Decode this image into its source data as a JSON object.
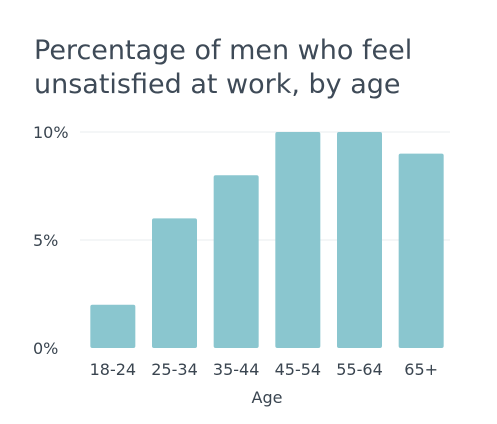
{
  "chart_data": {
    "type": "bar",
    "title_lines": [
      "Percentage of men who feel",
      "unsatisfied at work, by age"
    ],
    "categories": [
      "18-24",
      "25-34",
      "35-44",
      "45-54",
      "55-64",
      "65+"
    ],
    "values": [
      2,
      6,
      8,
      10,
      10,
      9
    ],
    "xlabel": "Age",
    "ylabel": "",
    "ylim": [
      0,
      10
    ],
    "yticks": [
      0,
      5,
      10
    ],
    "ytick_labels": [
      "0%",
      "5%",
      "10%"
    ],
    "grid": true,
    "bar_color": "#8ac6cf",
    "grid_color": "#e8ecef"
  }
}
